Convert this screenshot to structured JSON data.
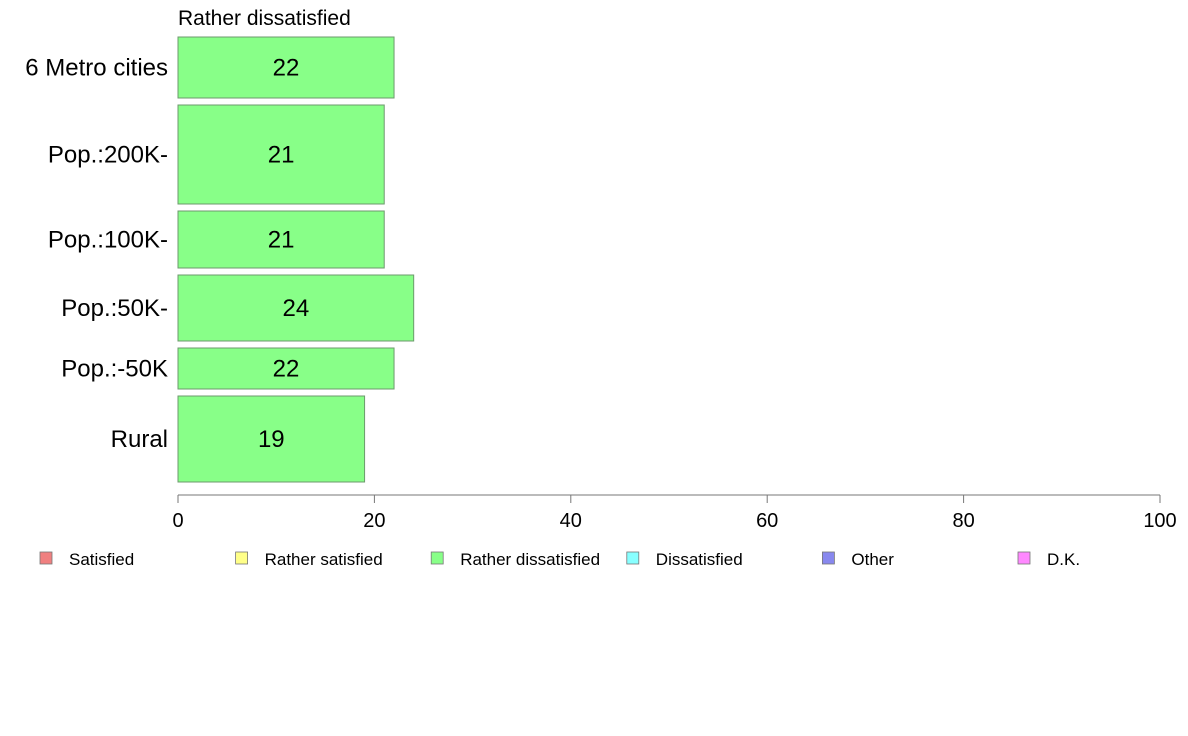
{
  "chart_data": {
    "type": "bar",
    "orientation": "horizontal",
    "title": "Rather dissatisfied",
    "categories": [
      "6 Metro cities",
      "Pop.:200K-",
      "Pop.:100K-",
      "Pop.:50K-",
      "Pop.:-50K",
      "Rural"
    ],
    "values": [
      22,
      21,
      21,
      24,
      22,
      19
    ],
    "series": [
      {
        "name": "Rather dissatisfied",
        "values": [
          22,
          21,
          21,
          24,
          22,
          19
        ],
        "color": "#88ff88"
      }
    ],
    "xlim": [
      0,
      100
    ],
    "xticks": [
      "0",
      "20",
      "40",
      "60",
      "80",
      "100"
    ],
    "grid": false,
    "legend_position": "bottom",
    "legend": [
      {
        "label": "Satisfied",
        "color": "#f08080"
      },
      {
        "label": "Rather satisfied",
        "color": "#ffff88"
      },
      {
        "label": "Rather dissatisfied",
        "color": "#88ff88"
      },
      {
        "label": "Dissatisfied",
        "color": "#88ffff"
      },
      {
        "label": "Other",
        "color": "#8888ee"
      },
      {
        "label": "D.K.",
        "color": "#ff88ff"
      }
    ]
  }
}
